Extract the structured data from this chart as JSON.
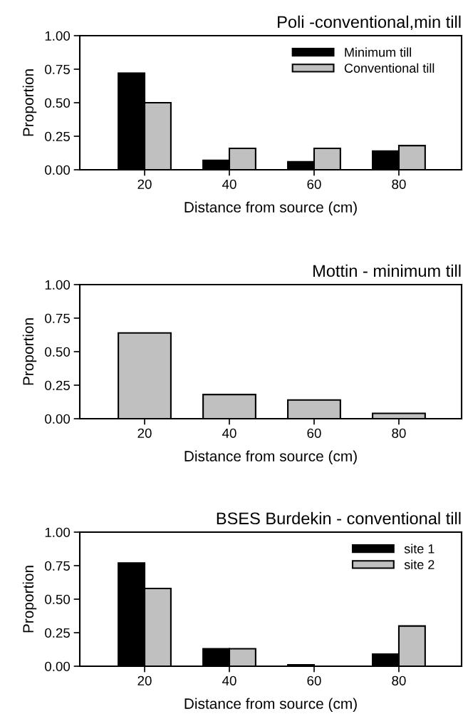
{
  "chart_data": [
    {
      "type": "bar",
      "title": "Poli -conventional,min till",
      "xlabel": "Distance from source (cm)",
      "ylabel": "Proportion",
      "categories": [
        "20",
        "40",
        "60",
        "80"
      ],
      "series": [
        {
          "name": "Minimum till",
          "color": "#000000",
          "values": [
            0.72,
            0.07,
            0.06,
            0.14
          ]
        },
        {
          "name": "Conventional till",
          "color": "#c0c0c0",
          "values": [
            0.5,
            0.16,
            0.16,
            0.18
          ]
        }
      ],
      "ylim": [
        0,
        1
      ],
      "yticks": [
        {
          "value": 0,
          "label": "0.00"
        },
        {
          "value": 0.25,
          "label": "0.25"
        },
        {
          "value": 0.5,
          "label": "0.50"
        },
        {
          "value": 0.75,
          "label": "0.75"
        },
        {
          "value": 1,
          "label": "1.00"
        }
      ],
      "legend": "top right",
      "grid": false
    },
    {
      "type": "bar",
      "title": "Mottin - minimum till",
      "xlabel": "Distance from source (cm)",
      "ylabel": "Proportion",
      "categories": [
        "20",
        "40",
        "60",
        "80"
      ],
      "series": [
        {
          "color": "#c0c0c0",
          "values": [
            0.64,
            0.18,
            0.14,
            0.04
          ]
        }
      ],
      "ylim": [
        0,
        1
      ],
      "yticks": [
        {
          "value": 0,
          "label": "0.00"
        },
        {
          "value": 0.25,
          "label": "0.25"
        },
        {
          "value": 0.5,
          "label": "0.50"
        },
        {
          "value": 0.75,
          "label": "0.75"
        },
        {
          "value": 1,
          "label": "1.00"
        }
      ],
      "legend": false,
      "grid": false
    },
    {
      "type": "bar",
      "title": "BSES Burdekin - conventional till",
      "xlabel": "Distance from source (cm)",
      "ylabel": "Proportion",
      "categories": [
        "20",
        "40",
        "60",
        "80"
      ],
      "series": [
        {
          "name": "site 1",
          "color": "#000000",
          "values": [
            0.77,
            0.13,
            0.01,
            0.09
          ]
        },
        {
          "name": "site 2",
          "color": "#c0c0c0",
          "values": [
            0.58,
            0.13,
            0.0,
            0.3
          ]
        }
      ],
      "ylim": [
        0,
        1
      ],
      "yticks": [
        {
          "value": 0,
          "label": "0.00"
        },
        {
          "value": 0.25,
          "label": "0.25"
        },
        {
          "value": 0.5,
          "label": "0.50"
        },
        {
          "value": 0.75,
          "label": "0.75"
        },
        {
          "value": 1,
          "label": "1.00"
        }
      ],
      "legend": "top right",
      "grid": false
    }
  ]
}
